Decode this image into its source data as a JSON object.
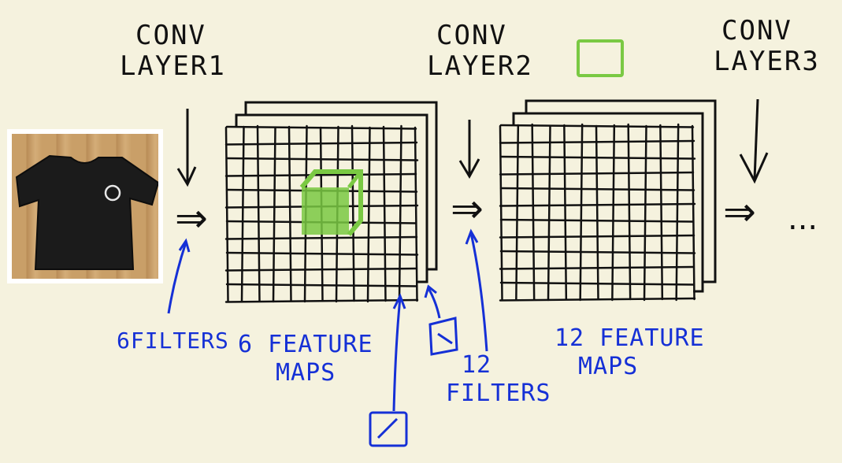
{
  "labels": {
    "conv_layer1": [
      "CONV",
      "LAYER1"
    ],
    "conv_layer2": [
      "CONV",
      "LAYER2"
    ],
    "conv_layer3": [
      "CONV",
      "LAYER3"
    ],
    "filters_6": "6FILTERS",
    "feature_maps_6": [
      "6 FEATURE",
      "MAPS"
    ],
    "filters_12": [
      "12",
      "FILTERS"
    ],
    "feature_maps_12": [
      "12 FEATURE",
      "MAPS"
    ],
    "continuation": "..."
  },
  "icons": {
    "arrow": "double-arrow-right",
    "down_arrow": "down-arrow",
    "pointer_arrow": "pointer-arrow"
  },
  "colors": {
    "ink_black": "#111111",
    "ink_blue": "#1530d6",
    "highlight_green": "#7ac943",
    "board": "#f5f2de"
  }
}
